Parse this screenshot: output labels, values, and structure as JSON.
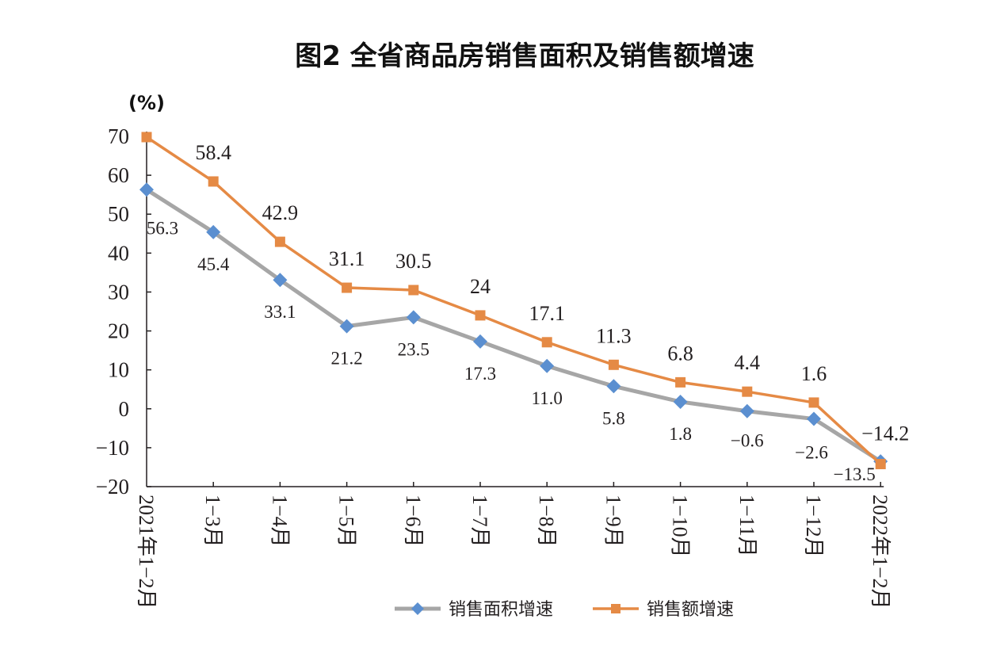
{
  "chart_data": {
    "type": "line",
    "title": "图2 全省商品房销售面积及销售额增速",
    "ylabel": "(%)",
    "xlabel": "",
    "ylim": [
      -20,
      70
    ],
    "yticks": [
      70,
      60,
      50,
      40,
      30,
      20,
      10,
      0,
      -10,
      -20
    ],
    "yticks_display": [
      "70",
      "60",
      "50",
      "40",
      "30",
      "20",
      "10",
      "0",
      "−10",
      "−20"
    ],
    "categories": [
      "2021年1−2月",
      "1−3月",
      "1−4月",
      "1−5月",
      "1−6月",
      "1−7月",
      "1−8月",
      "1−9月",
      "1−10月",
      "1−11月",
      "1−12月",
      "2022年1−2月"
    ],
    "grid": false,
    "legend": "bottom",
    "series": [
      {
        "name": "销售面积增速",
        "color": "#a6a6a6",
        "marker_color": "#5b8fd0",
        "marker": "diamond",
        "values": [
          56.3,
          45.4,
          33.1,
          21.2,
          23.5,
          17.3,
          11.0,
          5.8,
          1.8,
          -0.6,
          -2.6,
          -13.5
        ],
        "labels": [
          "56.3",
          "45.4",
          "33.1",
          "21.2",
          "23.5",
          "17.3",
          "11.0",
          "5.8",
          "1.8",
          "−0.6",
          "−2.6",
          "−13.5"
        ]
      },
      {
        "name": "销售额增速",
        "color": "#e58a45",
        "marker_color": "#e58a45",
        "marker": "square",
        "values": [
          69.8,
          58.4,
          42.9,
          31.1,
          30.5,
          24,
          17.1,
          11.3,
          6.8,
          4.4,
          1.6,
          -14.2
        ],
        "labels": [
          "",
          "58.4",
          "42.9",
          "31.1",
          "30.5",
          "24",
          "17.1",
          "11.3",
          "6.8",
          "4.4",
          "1.6",
          "−14.2"
        ]
      }
    ]
  }
}
